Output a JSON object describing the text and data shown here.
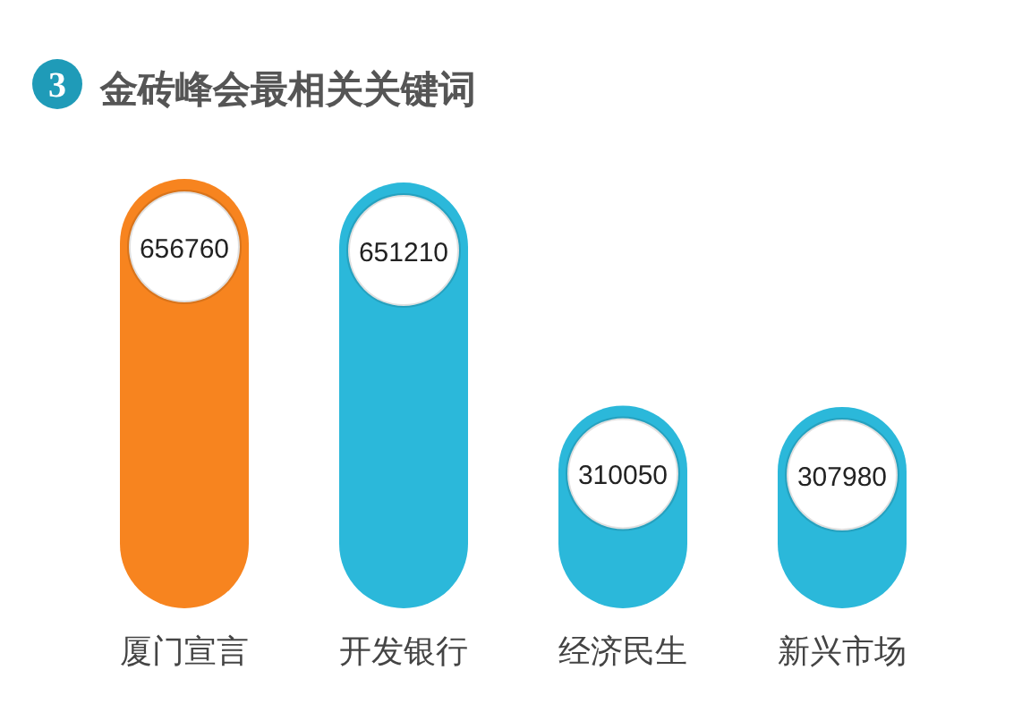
{
  "chart_data": {
    "type": "bar",
    "title": "金砖峰会最相关关键词",
    "annotations": [
      "3"
    ],
    "categories": [
      "厦门宣言",
      "开发银行",
      "经济民生",
      "新兴市场"
    ],
    "values": [
      656760,
      651210,
      310050,
      307980
    ],
    "colors": [
      "#f7841f",
      "#2bb8da",
      "#2bb8da",
      "#2bb8da"
    ],
    "data_labels": true
  }
}
